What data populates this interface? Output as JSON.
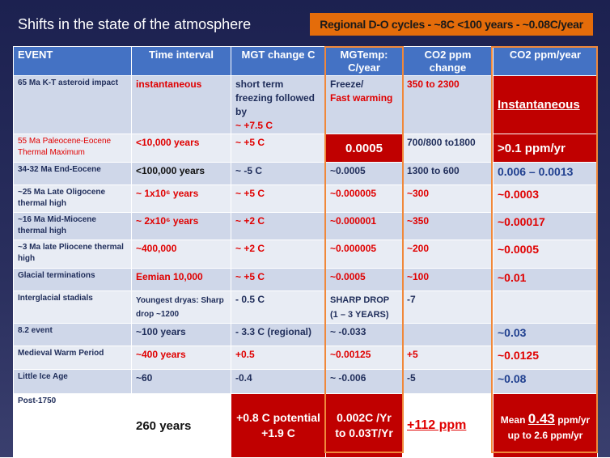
{
  "title": "Shifts in the state of the atmosphere",
  "badge": "Regional D-O cycles - ~8C <100 years - ~0.08C/year",
  "table": {
    "header": [
      "EVENT",
      "Time interval",
      "MGT change C",
      "MGTemp: C/year",
      "CO2 ppm change",
      "CO2 ppm/year"
    ],
    "rows": [
      [
        {
          "parts": [
            {
              "text": "65 Ma K-T asteroid impact"
            }
          ]
        },
        {
          "parts": [
            {
              "text": "instantaneous",
              "color": "#e00000"
            }
          ]
        },
        {
          "parts": [
            {
              "text": "short term freezing followed by",
              "color": "#1f2d5a"
            },
            {
              "text": "~ +7.5 C",
              "color": "#e00000",
              "block": true
            }
          ]
        },
        {
          "parts": [
            {
              "text": "Freeze/",
              "color": "#1f2d5a",
              "block": true
            },
            {
              "text": "Fast warming",
              "color": "#e00000",
              "block": true
            }
          ]
        },
        {
          "parts": [
            {
              "text": "350 to 2300",
              "color": "#e00000"
            }
          ]
        },
        {
          "fill": "#c00000",
          "parts": [
            {
              "text": "Instantaneous",
              "color": "#ffffff",
              "underline": true,
              "size": 15
            }
          ]
        }
      ],
      [
        {
          "parts": [
            {
              "text": "55 Ma Paleocene-Eocene Thermal Maximum",
              "color": "#e00000",
              "weight": "normal"
            }
          ]
        },
        {
          "parts": [
            {
              "text": " <10,000 years",
              "color": "#e00000"
            }
          ]
        },
        {
          "parts": [
            {
              "text": "~ +5 C",
              "color": "#e00000"
            }
          ]
        },
        {
          "fill": "#c00000",
          "parts": [
            {
              "text": "0.0005",
              "color": "#ffffff",
              "size": 15,
              "center": true
            }
          ]
        },
        {
          "parts": [
            {
              "text": "700/800 to1800",
              "color": "#1f2d5a"
            }
          ]
        },
        {
          "fill": "#c00000",
          "parts": [
            {
              "text": ">0.1 ppm/yr",
              "color": "#ffffff",
              "size": 15
            }
          ]
        }
      ],
      [
        {
          "parts": [
            {
              "text": "34-32 Ma End-Eocene"
            }
          ]
        },
        {
          "parts": [
            {
              "text": "<100,000 years",
              "color": "#111111"
            }
          ]
        },
        {
          "parts": [
            {
              "text": "~ -5 C",
              "color": "#1f2d5a"
            }
          ]
        },
        {
          "parts": [
            {
              "text": "~0.0005",
              "color": "#1f2d5a"
            }
          ]
        },
        {
          "parts": [
            {
              "text": "1300 to 600",
              "color": "#1f2d5a"
            }
          ]
        },
        {
          "parts": [
            {
              "text": "0.006 – 0.0013",
              "color": "#1f3f8f",
              "size": 14
            }
          ]
        }
      ],
      [
        {
          "parts": [
            {
              "text": "~25 Ma Late Oligocene thermal high"
            }
          ]
        },
        {
          "parts": [
            {
              "text": "~ 1x10⁶ years",
              "color": "#e00000"
            }
          ]
        },
        {
          "parts": [
            {
              "text": "~ +5 C",
              "color": "#e00000"
            }
          ]
        },
        {
          "parts": [
            {
              "text": "~0.000005",
              "color": "#e00000"
            }
          ]
        },
        {
          "parts": [
            {
              "text": "~300",
              "color": "#e00000"
            }
          ]
        },
        {
          "parts": [
            {
              "text": "~0.0003",
              "color": "#e00000",
              "size": 14
            }
          ]
        }
      ],
      [
        {
          "parts": [
            {
              "text": "~16 Ma Mid-Miocene thermal high"
            }
          ]
        },
        {
          "parts": [
            {
              "text": "~ 2x10⁶ years",
              "color": "#e00000"
            }
          ]
        },
        {
          "parts": [
            {
              "text": "~ +2 C",
              "color": "#e00000"
            }
          ]
        },
        {
          "parts": [
            {
              "text": "~0.000001",
              "color": "#e00000"
            }
          ]
        },
        {
          "parts": [
            {
              "text": "~350",
              "color": "#e00000"
            }
          ]
        },
        {
          "parts": [
            {
              "text": "~0.00017",
              "color": "#e00000",
              "size": 14
            }
          ]
        }
      ],
      [
        {
          "parts": [
            {
              "text": "~3 Ma late Pliocene thermal high"
            }
          ]
        },
        {
          "parts": [
            {
              "text": "~400,000",
              "color": "#e00000"
            }
          ]
        },
        {
          "parts": [
            {
              "text": "~ +2 C",
              "color": "#e00000"
            }
          ]
        },
        {
          "parts": [
            {
              "text": "~0.000005",
              "color": "#e00000"
            }
          ]
        },
        {
          "parts": [
            {
              "text": "~200",
              "color": "#e00000"
            }
          ]
        },
        {
          "parts": [
            {
              "text": "~0.0005",
              "color": "#e00000",
              "size": 14
            }
          ]
        }
      ],
      [
        {
          "parts": [
            {
              "text": "Glacial terminations"
            }
          ]
        },
        {
          "parts": [
            {
              "text": "Eemian 10,000",
              "color": "#e00000"
            }
          ]
        },
        {
          "parts": [
            {
              "text": "~ +5 C",
              "color": "#e00000"
            }
          ]
        },
        {
          "parts": [
            {
              "text": "~0.0005",
              "color": "#e00000"
            }
          ]
        },
        {
          "parts": [
            {
              "text": "~100",
              "color": "#e00000"
            }
          ]
        },
        {
          "parts": [
            {
              "text": "~0.01",
              "color": "#e00000",
              "size": 14
            }
          ]
        }
      ],
      [
        {
          "parts": [
            {
              "text": "Interglacial stadials"
            }
          ]
        },
        {
          "parts": [
            {
              "text": "Youngest dryas: Sharp drop ~1200",
              "color": "#1f2d5a",
              "size": 10
            }
          ]
        },
        {
          "parts": [
            {
              "text": "- 0.5 C",
              "color": "#1f2d5a"
            }
          ]
        },
        {
          "parts": [
            {
              "text": "SHARP DROP (1 – 3 YEARS)",
              "color": "#1f2d5a",
              "size": 11
            }
          ]
        },
        {
          "parts": [
            {
              "text": "-7",
              "color": "#1f2d5a"
            }
          ]
        },
        {
          "parts": []
        }
      ],
      [
        {
          "parts": [
            {
              "text": "8.2 event"
            }
          ]
        },
        {
          "parts": [
            {
              "text": "~100 years",
              "color": "#1f2d5a"
            }
          ]
        },
        {
          "parts": [
            {
              "text": "- 3.3 C (regional)",
              "color": "#1f2d5a"
            }
          ]
        },
        {
          "parts": [
            {
              "text": "~ -0.033",
              "color": "#1f2d5a"
            }
          ]
        },
        {
          "parts": []
        },
        {
          "parts": [
            {
              "text": "~0.03",
              "color": "#1f3f8f",
              "size": 14
            }
          ]
        }
      ],
      [
        {
          "parts": [
            {
              "text": "Medieval Warm Period"
            }
          ]
        },
        {
          "parts": [
            {
              "text": "~400 years",
              "color": "#e00000"
            }
          ]
        },
        {
          "parts": [
            {
              "text": "+0.5",
              "color": "#e00000"
            }
          ]
        },
        {
          "parts": [
            {
              "text": "~0.00125",
              "color": "#e00000"
            }
          ]
        },
        {
          "parts": [
            {
              "text": "+5",
              "color": "#e00000"
            }
          ]
        },
        {
          "parts": [
            {
              "text": "~0.0125",
              "color": "#e00000",
              "size": 14
            }
          ]
        }
      ],
      [
        {
          "parts": [
            {
              "text": "Little Ice Age"
            }
          ]
        },
        {
          "parts": [
            {
              "text": "~60",
              "color": "#1f2d5a"
            }
          ]
        },
        {
          "parts": [
            {
              "text": "-0.4",
              "color": "#1f2d5a"
            }
          ]
        },
        {
          "parts": [
            {
              "text": "~ -0.006",
              "color": "#1f2d5a"
            }
          ]
        },
        {
          "parts": [
            {
              "text": "-5",
              "color": "#1f2d5a"
            }
          ]
        },
        {
          "parts": [
            {
              "text": "~0.08",
              "color": "#1f3f8f",
              "size": 14
            }
          ]
        }
      ],
      [
        {
          "parts": [
            {
              "text": "Post-1750"
            }
          ]
        },
        {
          "parts": [
            {
              "text": "260 years",
              "color": "#111111",
              "size": 15
            }
          ]
        },
        {
          "fill": "#c00000",
          "parts": [
            {
              "text": "+0.8 C potential +1.9 C",
              "color": "#ffffff",
              "size": 14,
              "center": true
            }
          ]
        },
        {
          "fill": "#c00000",
          "parts": [
            {
              "text": "0.002C /Yr to 0.03T/Yr",
              "color": "#ffffff",
              "size": 14,
              "center": true
            }
          ]
        },
        {
          "parts": [
            {
              "text": "+112 ppm",
              "color": "#e00000",
              "underline": true,
              "size": 16
            }
          ]
        },
        {
          "fill": "#c00000",
          "parts": [
            {
              "text": "Mean ",
              "color": "#ffffff",
              "size": 12
            },
            {
              "text": "0.43",
              "color": "#ffffff",
              "underline": true,
              "size": 17
            },
            {
              "text": " ppm/yr up to 2.6 ppm/yr",
              "color": "#ffffff",
              "size": 12
            }
          ],
          "center": true
        }
      ]
    ]
  }
}
